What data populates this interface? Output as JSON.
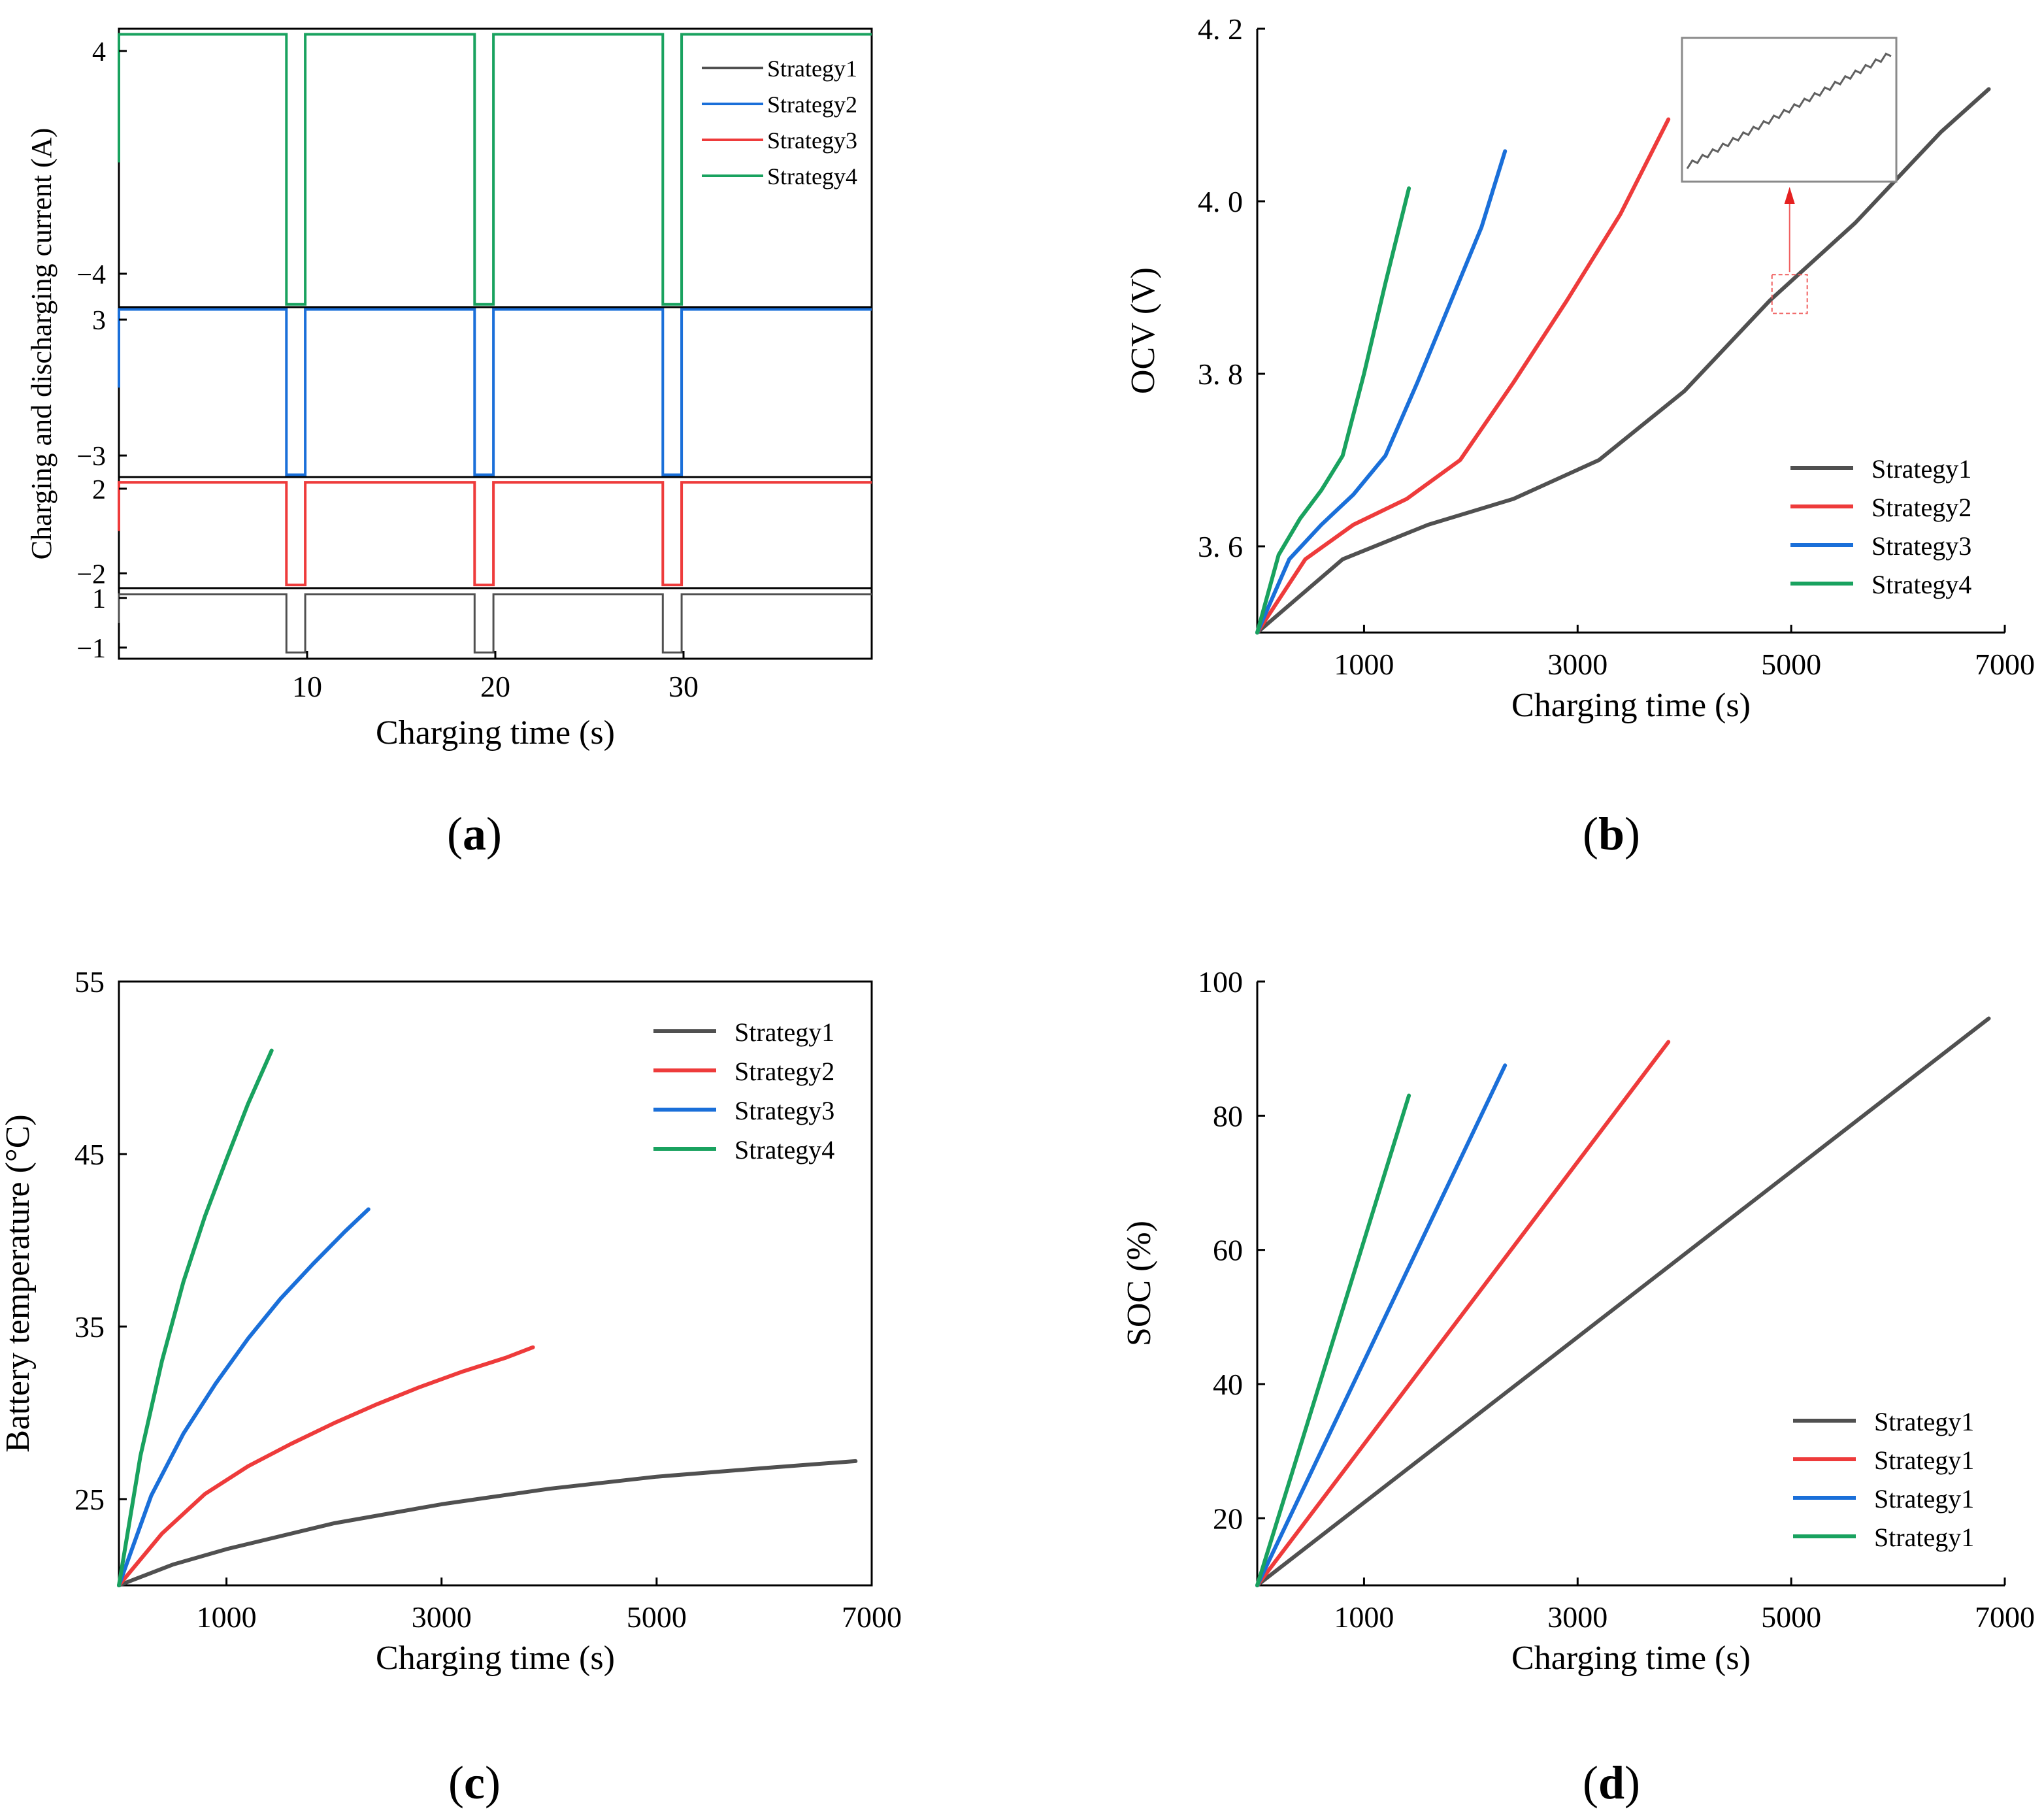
{
  "colors": {
    "s1": "#505050",
    "s2": "#1a6fd9",
    "s3": "#ee3b3b",
    "s4": "#19a25f",
    "axis": "#000000"
  },
  "chart_data": [
    {
      "id": "a",
      "panel_label": "a",
      "type": "line",
      "title": "",
      "xlabel": "Charging time (s)",
      "ylabel": "Charging and discharging current (A)",
      "xlim": [
        0,
        40
      ],
      "xticks": [
        10,
        20,
        30
      ],
      "pulse_windows": [
        [
          8.9,
          9.9
        ],
        [
          18.9,
          19.9
        ],
        [
          28.9,
          29.9
        ]
      ],
      "legend": [
        "Strategy1",
        "Strategy2",
        "Strategy3",
        "Strategy4"
      ],
      "bands": [
        {
          "name": "Strategy4",
          "color_key": "s4",
          "charge": 4.6,
          "discharge": -5.1,
          "ylim": [
            -5.2,
            4.8
          ],
          "yticks": [
            4,
            -4
          ]
        },
        {
          "name": "Strategy2",
          "color_key": "s2",
          "charge": 3.45,
          "discharge": -3.85,
          "ylim": [
            -3.95,
            3.55
          ],
          "yticks": [
            3,
            -3
          ]
        },
        {
          "name": "Strategy3",
          "color_key": "s3",
          "charge": 2.3,
          "discharge": -2.55,
          "ylim": [
            -2.7,
            2.55
          ],
          "yticks": [
            2,
            -2
          ]
        },
        {
          "name": "Strategy1",
          "color_key": "s1",
          "charge": 1.15,
          "discharge": -1.2,
          "ylim": [
            -1.45,
            1.4
          ],
          "yticks": [
            1,
            -1
          ]
        }
      ]
    },
    {
      "id": "b",
      "panel_label": "b",
      "type": "line",
      "title": "",
      "xlabel": "Charging time (s)",
      "ylabel": "OCV (V)",
      "xlim": [
        0,
        7000
      ],
      "ylim": [
        3.5,
        4.2
      ],
      "xticks": [
        1000,
        3000,
        5000,
        7000
      ],
      "yticks": [
        3.6,
        3.8,
        4.0,
        4.2
      ],
      "ytick_labels": [
        "3. 6",
        "3. 8",
        "4. 0",
        "4. 2"
      ],
      "legend_position": "bottom-right",
      "series": [
        {
          "name": "Strategy1",
          "color_key": "s1",
          "x": [
            0,
            800,
            1600,
            2400,
            3200,
            4000,
            4800,
            5600,
            6400,
            6850
          ],
          "y": [
            3.5,
            3.585,
            3.625,
            3.655,
            3.7,
            3.78,
            3.885,
            3.975,
            4.08,
            4.13
          ]
        },
        {
          "name": "Strategy2",
          "color_key": "s3",
          "x": [
            0,
            450,
            900,
            1400,
            1900,
            2400,
            2900,
            3400,
            3850
          ],
          "y": [
            3.5,
            3.585,
            3.625,
            3.655,
            3.7,
            3.79,
            3.885,
            3.985,
            4.095
          ]
        },
        {
          "name": "Strategy3",
          "color_key": "s2",
          "x": [
            0,
            300,
            600,
            900,
            1200,
            1500,
            1800,
            2100,
            2320
          ],
          "y": [
            3.5,
            3.585,
            3.625,
            3.66,
            3.705,
            3.79,
            3.88,
            3.97,
            4.058
          ]
        },
        {
          "name": "Strategy4",
          "color_key": "s4",
          "x": [
            0,
            200,
            400,
            600,
            800,
            1000,
            1200,
            1420
          ],
          "y": [
            3.5,
            3.59,
            3.632,
            3.665,
            3.705,
            3.8,
            3.905,
            4.015
          ]
        }
      ],
      "inset": {
        "zoom_x": [
          4820,
          5150
        ],
        "zoom_y": [
          3.87,
          3.915
        ]
      }
    },
    {
      "id": "c",
      "panel_label": "c",
      "type": "line",
      "title": "",
      "xlabel": "Charging time (s)",
      "ylabel": "Battery temperature (°C)",
      "xlim": [
        0,
        7000
      ],
      "ylim": [
        20,
        55
      ],
      "xticks": [
        1000,
        3000,
        5000,
        7000
      ],
      "yticks": [
        25,
        35,
        45,
        55
      ],
      "legend_position": "top-right",
      "series": [
        {
          "name": "Strategy1",
          "color_key": "s1",
          "x": [
            0,
            500,
            1000,
            2000,
            3000,
            4000,
            5000,
            6000,
            6850
          ],
          "y": [
            20,
            21.2,
            22.1,
            23.6,
            24.7,
            25.6,
            26.3,
            26.8,
            27.2
          ]
        },
        {
          "name": "Strategy2",
          "color_key": "s3",
          "x": [
            0,
            400,
            800,
            1200,
            1600,
            2000,
            2400,
            2800,
            3200,
            3600,
            3850
          ],
          "y": [
            20,
            23.0,
            25.3,
            26.9,
            28.2,
            29.4,
            30.5,
            31.5,
            32.4,
            33.2,
            33.8
          ]
        },
        {
          "name": "Strategy3",
          "color_key": "s2",
          "x": [
            0,
            300,
            600,
            900,
            1200,
            1500,
            1800,
            2100,
            2320
          ],
          "y": [
            20,
            25.2,
            28.8,
            31.7,
            34.3,
            36.6,
            38.6,
            40.5,
            41.8
          ]
        },
        {
          "name": "Strategy4",
          "color_key": "s4",
          "x": [
            0,
            200,
            400,
            600,
            800,
            1000,
            1200,
            1420
          ],
          "y": [
            20,
            27.5,
            33.0,
            37.6,
            41.4,
            44.7,
            47.9,
            51.0
          ]
        }
      ]
    },
    {
      "id": "d",
      "panel_label": "d",
      "type": "line",
      "title": "",
      "xlabel": "Charging time (s)",
      "ylabel": "SOC (%)",
      "xlim": [
        0,
        7000
      ],
      "ylim": [
        10,
        100
      ],
      "xticks": [
        1000,
        3000,
        5000,
        7000
      ],
      "yticks": [
        20,
        40,
        60,
        80,
        100
      ],
      "legend_position": "bottom-right",
      "series": [
        {
          "name": "Strategy1",
          "color_key": "s1",
          "x": [
            0,
            6850
          ],
          "y": [
            10,
            94.5
          ]
        },
        {
          "name": "Strategy1",
          "color_key": "s3",
          "x": [
            0,
            3850
          ],
          "y": [
            10,
            91
          ]
        },
        {
          "name": "Strategy1",
          "color_key": "s2",
          "x": [
            0,
            2320
          ],
          "y": [
            10,
            87.5
          ]
        },
        {
          "name": "Strategy1",
          "color_key": "s4",
          "x": [
            0,
            1420
          ],
          "y": [
            10,
            83
          ]
        }
      ]
    }
  ]
}
